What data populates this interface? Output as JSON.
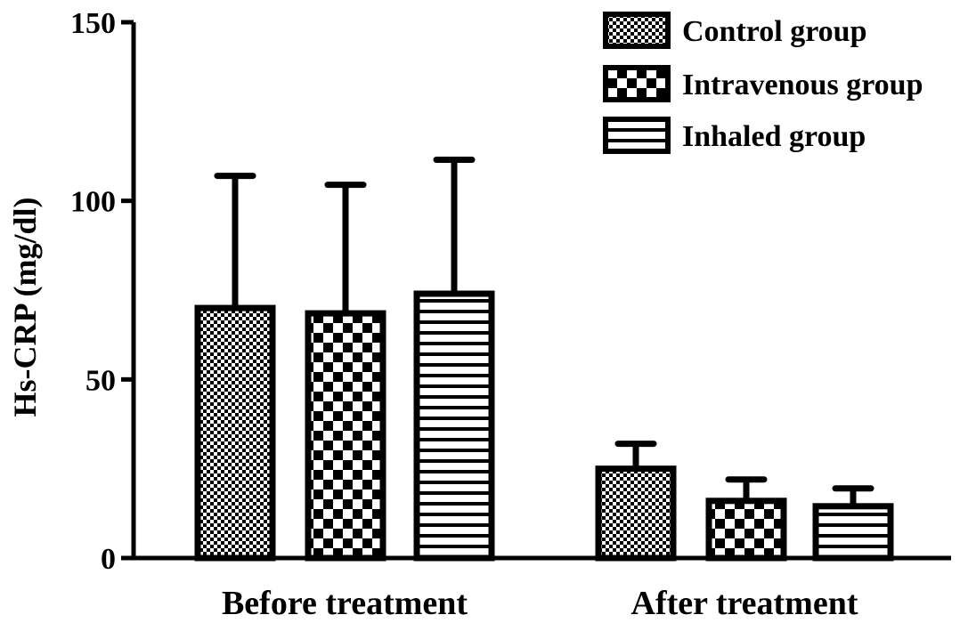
{
  "chart_data": {
    "type": "bar",
    "title": "",
    "xlabel": "",
    "ylabel": "Hs-CRP (mg/dl)",
    "ylim": [
      0,
      150
    ],
    "yticks": [
      "0",
      "50",
      "100",
      "150"
    ],
    "categories": [
      "Before treatment",
      "After treatment"
    ],
    "series": [
      {
        "name": "Control group",
        "pattern": "dots",
        "values": [
          70,
          25
        ],
        "errors": [
          37,
          7
        ]
      },
      {
        "name": "Intravenous group",
        "pattern": "checker",
        "values": [
          68.5,
          16
        ],
        "errors": [
          36,
          6
        ]
      },
      {
        "name": "Inhaled group",
        "pattern": "horizontal-lines",
        "values": [
          74,
          14.5
        ],
        "errors": [
          37.5,
          5
        ]
      }
    ],
    "grid": false,
    "legend_position": "top-right",
    "colors": {
      "bar_stroke": "#000000",
      "background": "#ffffff"
    }
  }
}
